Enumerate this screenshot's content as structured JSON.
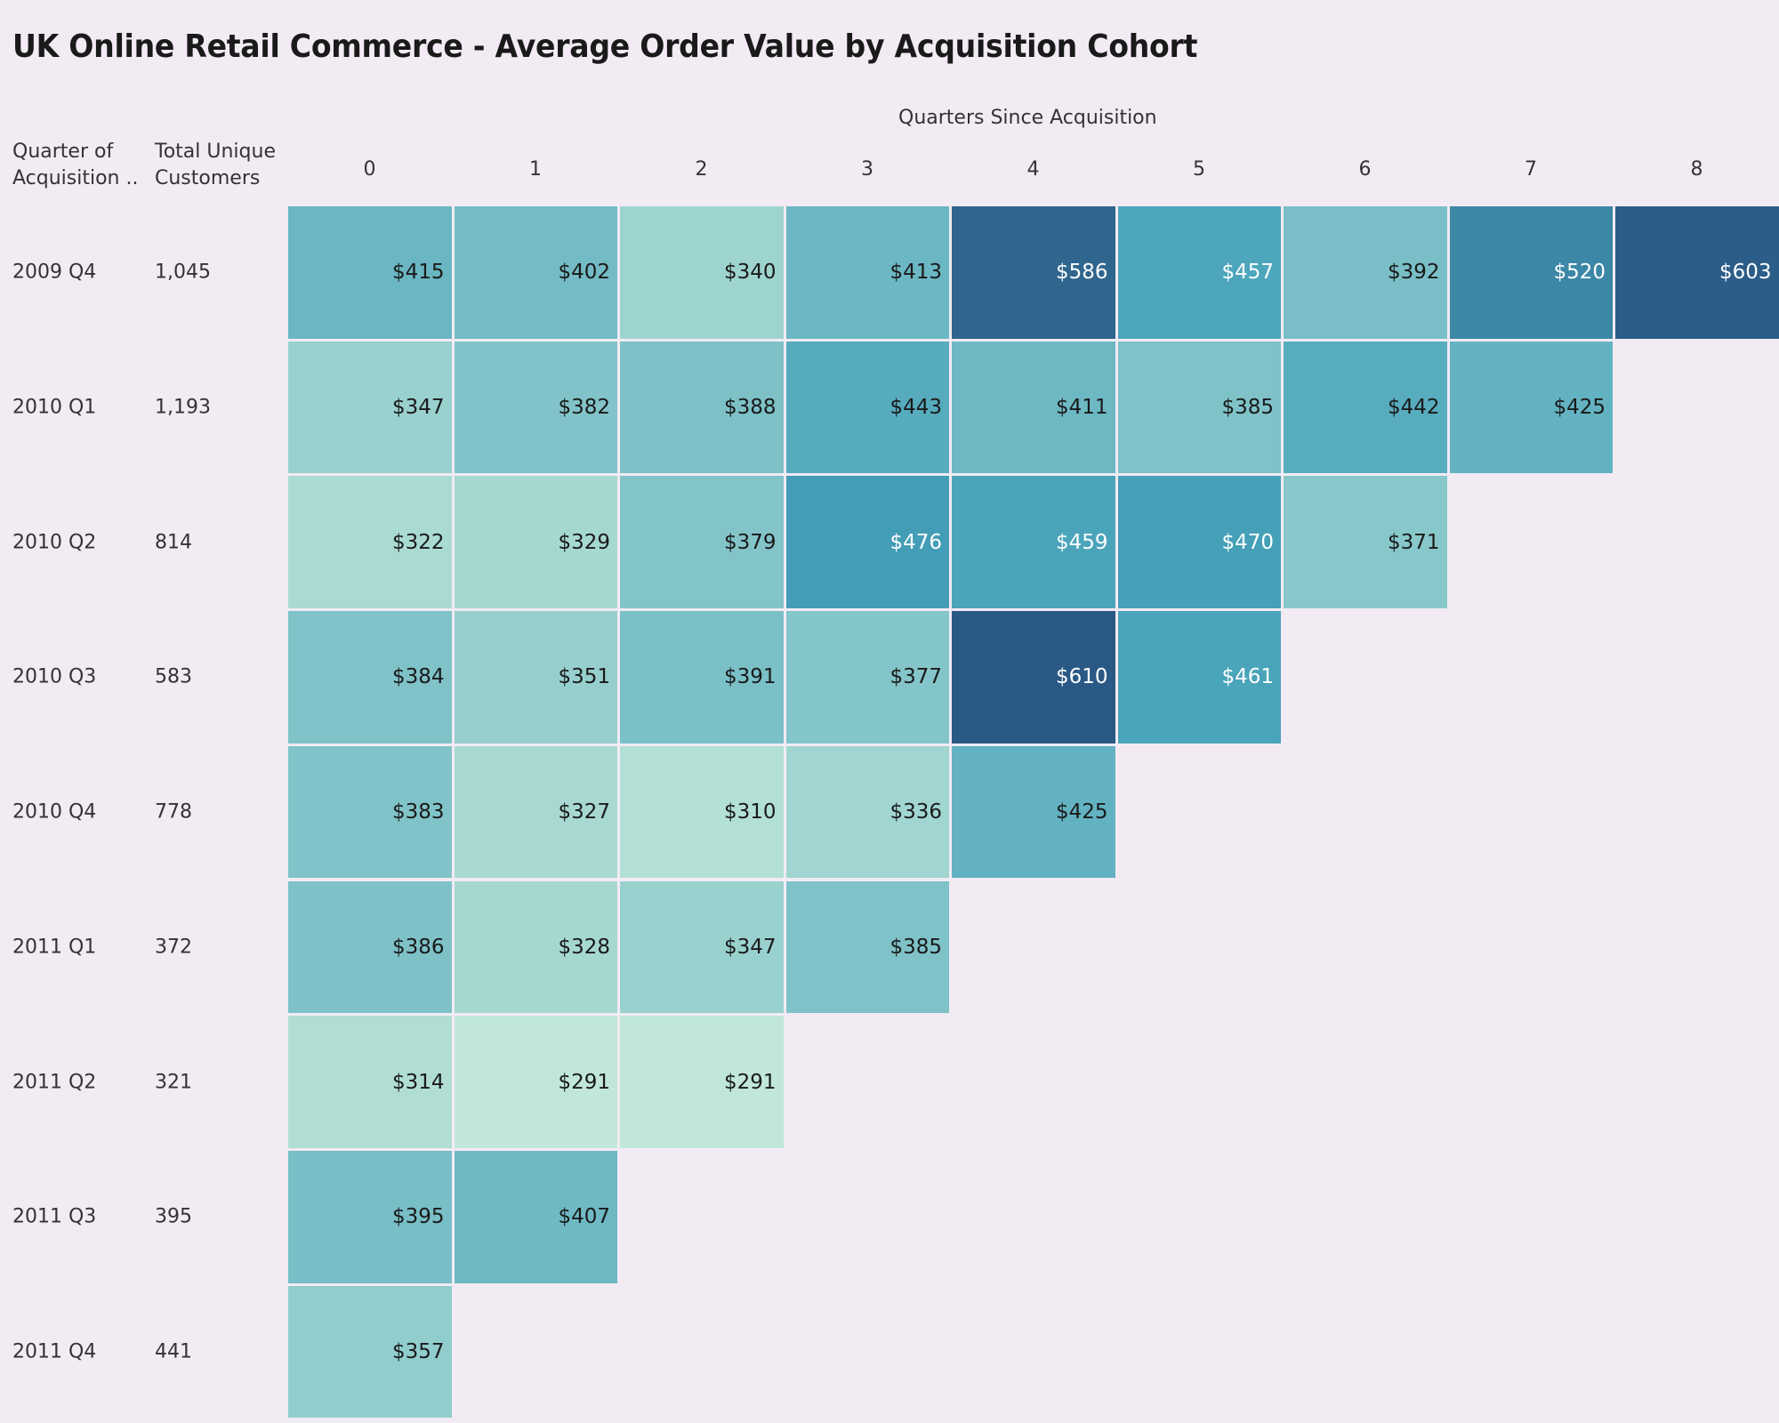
{
  "title": "UK Online Retail Commerce -  Average Order Value by Acquisition Cohort",
  "headers": {
    "row_dim_line1": "Quarter of",
    "row_dim_line2": "Acquisition ..",
    "customers_line1": "Total Unique",
    "customers_line2": "Customers"
  },
  "chart_data": {
    "type": "heatmap",
    "title": "UK Online Retail Commerce -  Average Order Value by Acquisition Cohort",
    "xlabel": "Quarters Since Acquisition",
    "x": [
      "0",
      "1",
      "2",
      "3",
      "4",
      "5",
      "6",
      "7",
      "8"
    ],
    "rows": [
      {
        "cohort": "2009 Q4",
        "customers": "1,045",
        "values": [
          415,
          402,
          340,
          413,
          586,
          457,
          392,
          520,
          603
        ]
      },
      {
        "cohort": "2010 Q1",
        "customers": "1,193",
        "values": [
          347,
          382,
          388,
          443,
          411,
          385,
          442,
          425
        ]
      },
      {
        "cohort": "2010 Q2",
        "customers": "814",
        "values": [
          322,
          329,
          379,
          476,
          459,
          470,
          371
        ]
      },
      {
        "cohort": "2010 Q3",
        "customers": "583",
        "values": [
          384,
          351,
          391,
          377,
          610,
          461
        ]
      },
      {
        "cohort": "2010 Q4",
        "customers": "778",
        "values": [
          383,
          327,
          310,
          336,
          425
        ]
      },
      {
        "cohort": "2011 Q1",
        "customers": "372",
        "values": [
          386,
          328,
          347,
          385
        ]
      },
      {
        "cohort": "2011 Q2",
        "customers": "321",
        "values": [
          314,
          291,
          291
        ]
      },
      {
        "cohort": "2011 Q3",
        "customers": "395",
        "values": [
          395,
          407
        ]
      },
      {
        "cohort": "2011 Q4",
        "customers": "441",
        "values": [
          357
        ]
      }
    ],
    "value_prefix": "$",
    "color_range": [
      291,
      610
    ],
    "colors": {
      "low": "#c0e7d9",
      "mid": "#46a2b9",
      "high": "#2b5985",
      "gap": "#e8e8e8",
      "text_dark": "#1a1a1a",
      "text_light": "#ffffff"
    }
  }
}
